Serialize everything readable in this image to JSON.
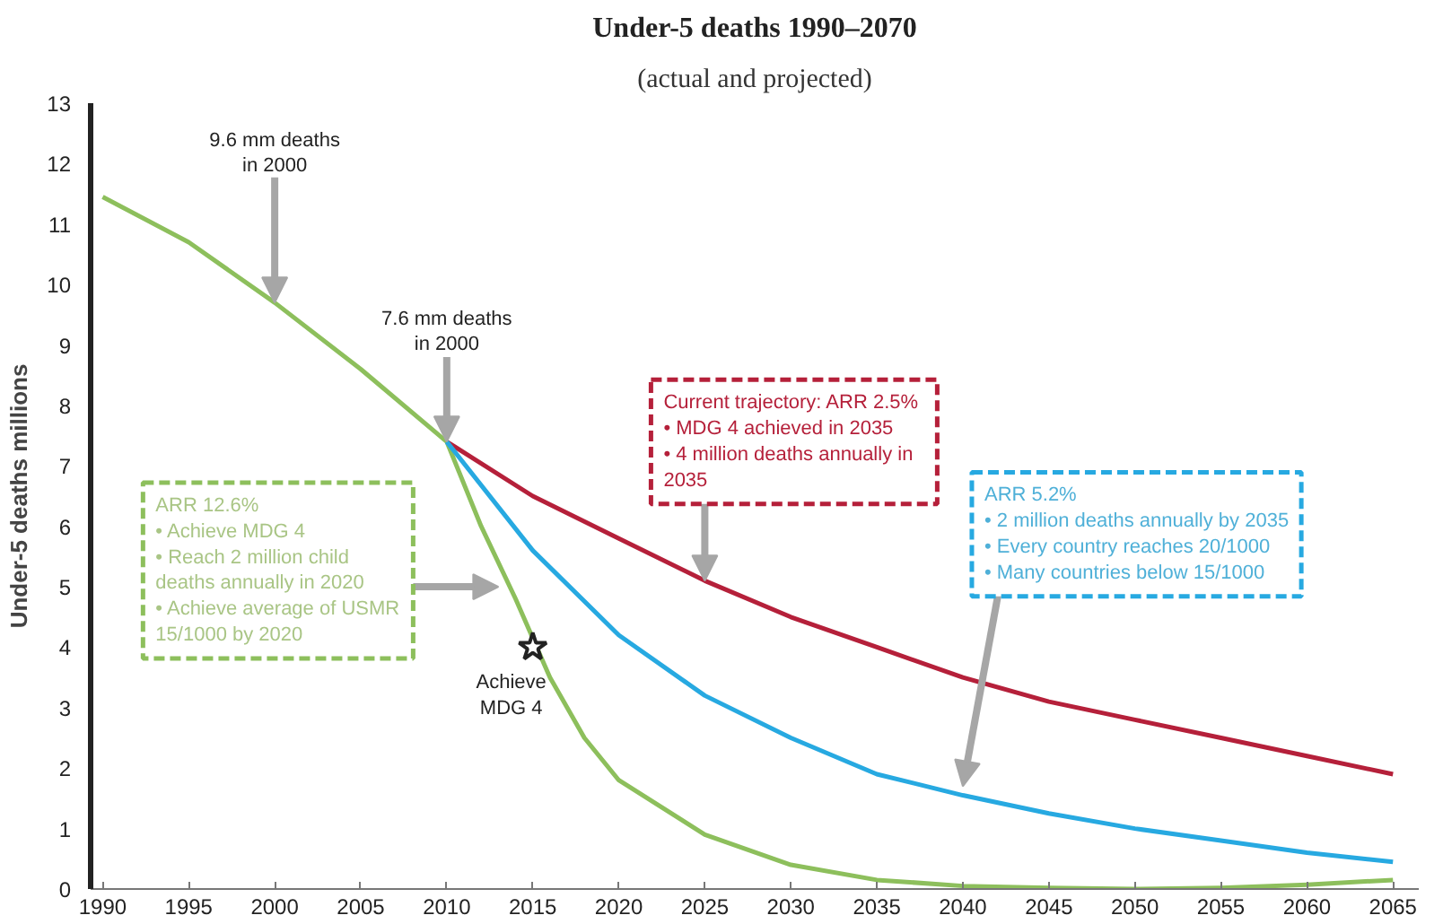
{
  "chart_data": {
    "type": "line",
    "title": "Under-5 deaths 1990–2070",
    "subtitle": "(actual and projected)",
    "ylabel": "Under-5 deaths millions",
    "xlim": [
      1989.3,
      2066.5
    ],
    "ylim": [
      0,
      13
    ],
    "xticks": [
      1990,
      1995,
      2000,
      2005,
      2010,
      2015,
      2020,
      2025,
      2030,
      2035,
      2040,
      2045,
      2050,
      2055,
      2060,
      2065
    ],
    "yticks": [
      0,
      1,
      2,
      3,
      4,
      5,
      6,
      7,
      8,
      9,
      10,
      11,
      12,
      13
    ],
    "grid": false,
    "series": [
      {
        "color": "#8dbf5c",
        "x": [
          1990,
          1995,
          2000,
          2005,
          2010,
          2012,
          2014,
          2016,
          2018,
          2020,
          2025,
          2030,
          2035,
          2040,
          2045,
          2050,
          2055,
          2060,
          2065
        ],
        "values": [
          11.45,
          10.7,
          9.7,
          8.6,
          7.4,
          6.0,
          4.8,
          3.5,
          2.5,
          1.8,
          0.9,
          0.4,
          0.15,
          0.05,
          0.02,
          0.0,
          0.02,
          0.07,
          0.15
        ]
      },
      {
        "color": "#b5203a",
        "x": [
          2010,
          2015,
          2020,
          2025,
          2030,
          2035,
          2040,
          2045,
          2050,
          2055,
          2060,
          2065
        ],
        "values": [
          7.4,
          6.5,
          5.8,
          5.1,
          4.5,
          4.0,
          3.5,
          3.1,
          2.8,
          2.5,
          2.2,
          1.9
        ]
      },
      {
        "color": "#27a9e1",
        "x": [
          2010,
          2015,
          2020,
          2025,
          2030,
          2035,
          2040,
          2045,
          2050,
          2055,
          2060,
          2065
        ],
        "values": [
          7.4,
          5.6,
          4.2,
          3.2,
          2.5,
          1.9,
          1.55,
          1.25,
          1.0,
          0.8,
          0.6,
          0.45
        ]
      },
      {
        "type": "scatter",
        "marker": "star",
        "color": "#222222",
        "x": [
          2015
        ],
        "values": [
          4.0
        ]
      }
    ],
    "annotations": [
      {
        "text": "9.6 mm deaths\nin 2000",
        "x": 2000,
        "y": 9.7
      },
      {
        "text": "7.6 mm deaths\nin 2000",
        "x": 2010,
        "y": 7.4
      },
      {
        "text": "ARR 12.6%\n• Achieve MDG 4\n• Reach 2 million child\n  deaths annually in 2020\n• Achieve average of USMR\n15/1000 by 2020",
        "x": 2013,
        "y": 5.0
      },
      {
        "text": "Achieve\nMDG 4",
        "x": 2015,
        "y": 4.0
      },
      {
        "text": "Current trajectory:  ARR 2.5%\n• MDG 4 achieved in 2035\n• 4 million deaths annually in\n  2035",
        "x": 2025,
        "y": 5.1
      },
      {
        "text": "ARR 5.2%\n• 2 million deaths annually by 2035\n• Every country reaches 20/1000\n• Many countries below 15/1000",
        "x": 2040,
        "y": 1.7
      }
    ]
  }
}
